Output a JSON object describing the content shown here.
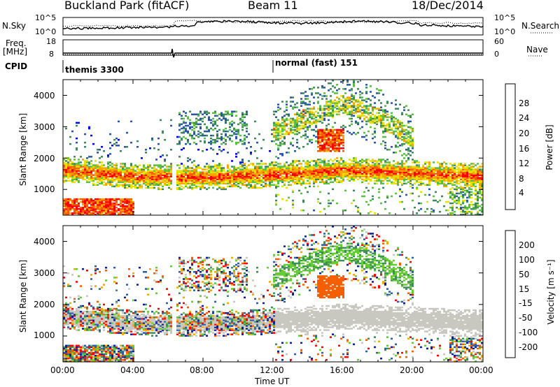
{
  "header": {
    "radar": "Buckland Park (fitACF)",
    "beam": "Beam 11",
    "date": "18/Dec/2014"
  },
  "noise_panel": {
    "left_label": "N.Sky",
    "right_label": "N.Search",
    "left_ticks": [
      "10^5",
      "10^0"
    ],
    "right_ticks": [
      "10^5",
      "10^0"
    ]
  },
  "freq_panel": {
    "label_line1": "Freq.",
    "label_line2": "[MHz]",
    "left_ticks": [
      "18",
      "8"
    ],
    "right_label": "Nave",
    "right_ticks": [
      "60",
      "0"
    ]
  },
  "cpid": {
    "label": "CPID",
    "modes": [
      {
        "name": "themis 3300",
        "start": 0
      },
      {
        "name": "normal (fast) 151",
        "start": 12
      }
    ]
  },
  "power_panel": {
    "ylabel": "Slant Range [km]",
    "yticks": [
      "1000",
      "2000",
      "3000",
      "4000"
    ],
    "colorbar_label": "Power [dB]",
    "colorbar_ticks": [
      "4",
      "8",
      "12",
      "16",
      "20",
      "24",
      "28"
    ],
    "colors": [
      "#0000ff",
      "#2a55a8",
      "#3f8a5a",
      "#5bbf3f",
      "#e8e000",
      "#f5a800",
      "#f55f00",
      "#ff0000"
    ]
  },
  "velocity_panel": {
    "ylabel": "Slant Range [km]",
    "yticks": [
      "1000",
      "2000",
      "3000",
      "4000"
    ],
    "colorbar_label": "Velocity [m s⁻¹]",
    "colorbar_ticks": [
      "200",
      "100",
      "50",
      "15",
      "-15",
      "-50",
      "-100",
      "-200"
    ],
    "colors": [
      "#0a1f9c",
      "#2d5fa8",
      "#3f8f5a",
      "#66cc33",
      "#c8c8c0",
      "#f5a800",
      "#f55f00",
      "#ff0000"
    ]
  },
  "xaxis": {
    "label": "Time UT",
    "ticks": [
      "00:00",
      "04:00",
      "08:00",
      "12:00",
      "16:00",
      "20:00",
      "00:00"
    ]
  },
  "chart_data": {
    "type": "heatmap",
    "x_range_hours": [
      0,
      24
    ],
    "y_range_km": [
      180,
      4500
    ],
    "features": [
      {
        "name": "main echo band",
        "times_h": [
          0,
          4,
          8,
          12,
          16,
          20,
          24
        ],
        "range_km": [
          1600,
          1400,
          1350,
          1450,
          1600,
          1500,
          1400
        ],
        "power_db": 26
      },
      {
        "name": "near range echoes",
        "times_h": [
          0,
          1,
          2,
          3,
          4
        ],
        "range_km": [
          400,
          350,
          300,
          350,
          400
        ],
        "power_db": 28
      },
      {
        "name": "F-region arc",
        "times_h": [
          12,
          14,
          16,
          18,
          20
        ],
        "range_km": [
          2800,
          3300,
          3700,
          3300,
          2600
        ],
        "power_db": 14
      }
    ]
  }
}
